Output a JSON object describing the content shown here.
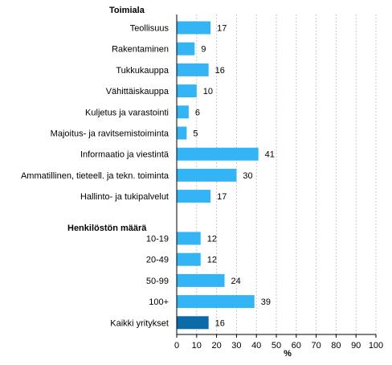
{
  "chart_data": {
    "type": "bar",
    "orientation": "horizontal",
    "xlabel": "%",
    "xlim": [
      0,
      100
    ],
    "xticks": [
      0,
      10,
      20,
      30,
      40,
      50,
      60,
      70,
      80,
      90,
      100
    ],
    "grid": true,
    "groups": [
      {
        "label": "Toimiala",
        "categories": [
          "Teollisuus",
          "Rakentaminen",
          "Tukkukauppa",
          "Vähittäiskauppa",
          "Kuljetus ja varastointi",
          "Majoitus- ja ravitsemistoiminta",
          "Informaatio ja viestintä",
          "Ammatillinen, tieteell. ja tekn. toiminta",
          "Hallinto- ja tukipalvelut"
        ],
        "values": [
          17,
          9,
          16,
          10,
          6,
          5,
          41,
          30,
          17
        ]
      },
      {
        "label": "Henkilöstön määrä",
        "categories": [
          "10-19",
          "20-49",
          "50-99",
          "100+"
        ],
        "values": [
          12,
          12,
          24,
          39
        ]
      },
      {
        "label": "",
        "categories": [
          "Kaikki yritykset"
        ],
        "values": [
          16
        ],
        "highlight": true
      }
    ],
    "colors": {
      "bar": "#33b4f5",
      "highlight": "#0a6ba8",
      "grid": "#c8c8c8",
      "axis": "#000000"
    }
  }
}
